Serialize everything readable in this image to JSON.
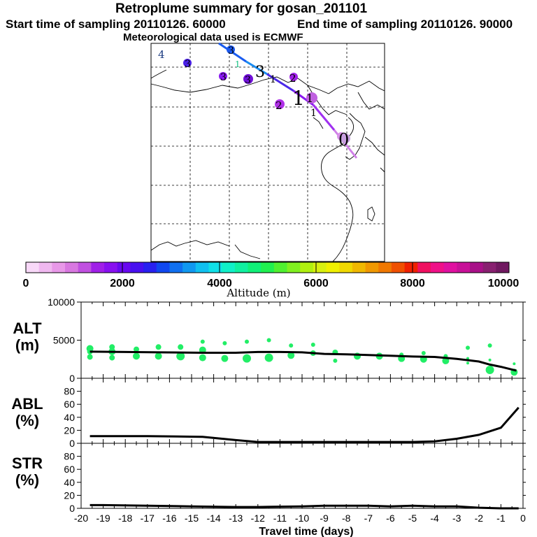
{
  "header": {
    "title": "Retroplume summary for gosan_201101",
    "start_label": "Start time of sampling 20110126. 60000",
    "end_label": "End time of sampling 20110126. 90000",
    "met_label": "Meteorological data used is ECMWF"
  },
  "colorbar": {
    "ticks": [
      "0",
      "2000",
      "4000",
      "6000",
      "8000",
      "10000"
    ],
    "label": "Altitude (m)",
    "colors": [
      "#f8d8f8",
      "#f0b8f0",
      "#e898e8",
      "#d878e0",
      "#c050e0",
      "#a020e8",
      "#8810f0",
      "#6808f0",
      "#4810f0",
      "#2820f0",
      "#1048f0",
      "#1070f0",
      "#1098f0",
      "#10c0f0",
      "#10e0e8",
      "#10f0c8",
      "#10f0a0",
      "#10f078",
      "#20f050",
      "#50f030",
      "#80f020",
      "#b0f010",
      "#d8f010",
      "#f0f000",
      "#f0d800",
      "#f0b800",
      "#f09800",
      "#f07800",
      "#f05000",
      "#f02000",
      "#f01060",
      "#f01088",
      "#e010a0",
      "#c81098",
      "#a81088",
      "#882070",
      "#701860"
    ]
  },
  "map": {
    "numbers": [
      "4",
      "3",
      "3",
      "3",
      "3",
      "1",
      "3",
      "2",
      "2",
      "1",
      "1",
      "1",
      "1",
      "0"
    ]
  },
  "chart_data": [
    {
      "type": "line",
      "panel": "ALT",
      "ylabel_lines": [
        "ALT",
        "(m)"
      ],
      "ylim": [
        0,
        10000
      ],
      "yticks": [
        "10000",
        "5000",
        "0"
      ],
      "x": [
        -19.6,
        -18,
        -16.5,
        -14.5,
        -13,
        -12,
        -11,
        -10,
        -9,
        -8,
        -7,
        -6,
        -5,
        -4,
        -3,
        -2,
        -1.5,
        -1,
        -0.3
      ],
      "values": [
        3500,
        3450,
        3400,
        3350,
        3350,
        3450,
        3450,
        3400,
        3200,
        3150,
        3050,
        2950,
        2850,
        2800,
        2550,
        2200,
        1800,
        1500,
        1000
      ],
      "scatter": {
        "color": "#22ee66",
        "x": [
          -19.6,
          -19.6,
          -19.6,
          -18.6,
          -18.6,
          -18.6,
          -17.5,
          -17.5,
          -16.5,
          -16.5,
          -15.5,
          -15.5,
          -14.5,
          -14.5,
          -14.5,
          -13.5,
          -13.5,
          -12.5,
          -12.5,
          -11.5,
          -11.5,
          -10.5,
          -10.5,
          -9.5,
          -9.5,
          -8.5,
          -8.5,
          -7.5,
          -6.5,
          -5.5,
          -5.5,
          -4.5,
          -4.5,
          -3.5,
          -3.5,
          -2.5,
          -2.5,
          -2.5,
          -1.5,
          -1.5,
          -1.5,
          -0.4,
          -0.4
        ],
        "values": [
          3900,
          3500,
          2800,
          4100,
          3500,
          2700,
          3800,
          2900,
          4100,
          2900,
          4100,
          2900,
          4800,
          3700,
          2700,
          4600,
          2600,
          4800,
          2600,
          5000,
          2700,
          4300,
          3000,
          4400,
          3300,
          3400,
          2300,
          2900,
          2900,
          3100,
          2600,
          3300,
          2500,
          2900,
          2300,
          4000,
          2600,
          2000,
          4300,
          2400,
          1100,
          1900,
          800
        ],
        "sizes": [
          5,
          4,
          4,
          4,
          5,
          4,
          4,
          5,
          4,
          5,
          4,
          6,
          3,
          5,
          5,
          3,
          5,
          3,
          6,
          3,
          6,
          3,
          5,
          3,
          4,
          4,
          3,
          5,
          5,
          3,
          5,
          3,
          5,
          3,
          5,
          3,
          2,
          2,
          3,
          2,
          6,
          2,
          5
        ]
      }
    },
    {
      "type": "line",
      "panel": "ABL",
      "ylabel_lines": [
        "ABL",
        "(%)"
      ],
      "ylim": [
        0,
        100
      ],
      "yticks": [
        "80",
        "60",
        "40",
        "20",
        "0"
      ],
      "x": [
        -19.6,
        -17,
        -14.5,
        -13,
        -12,
        -8,
        -6,
        -5,
        -4,
        -3,
        -2,
        -1,
        -0.2
      ],
      "values": [
        11,
        11,
        10,
        5,
        2,
        2,
        2,
        2,
        3,
        7,
        13,
        24,
        55
      ]
    },
    {
      "type": "line",
      "panel": "STR",
      "ylabel_lines": [
        "STR",
        "(%)"
      ],
      "ylim": [
        0,
        100
      ],
      "yticks": [
        "80",
        "60",
        "40",
        "20",
        "0"
      ],
      "x": [
        -19.6,
        -19,
        -17,
        -15,
        -13,
        -12,
        -10,
        -9,
        -7,
        -6,
        -5,
        -4,
        -3,
        -2,
        -1,
        -0.2
      ],
      "values": [
        5,
        5,
        4,
        3,
        2,
        2,
        3,
        4,
        4,
        3,
        4,
        3,
        3,
        1,
        0,
        0
      ]
    }
  ],
  "x_axis": {
    "ticks": [
      "-20",
      "-19",
      "-18",
      "-17",
      "-16",
      "-15",
      "-14",
      "-13",
      "-12",
      "-11",
      "-10",
      "-9",
      "-8",
      "-7",
      "-6",
      "-5",
      "-4",
      "-3",
      "-2",
      "-1",
      "0"
    ],
    "label": "Travel time (days)"
  }
}
